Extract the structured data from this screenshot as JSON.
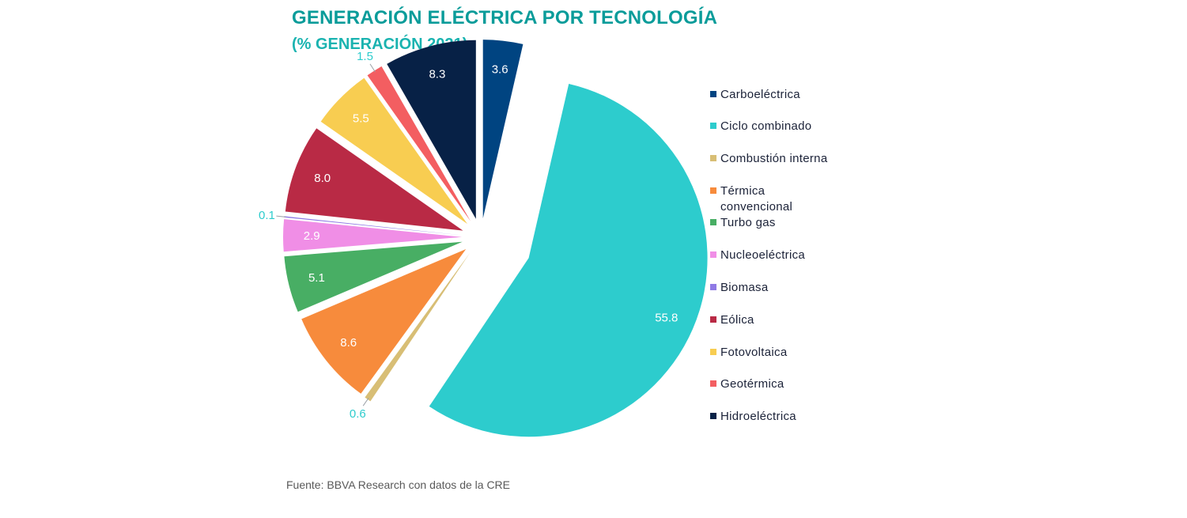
{
  "title": "GENERACIÓN ELÉCTRICA POR TECNOLOGÍA",
  "subtitle": "(% GENERACIÓN 2021)",
  "source": "Fuente: BBVA Research con datos de la CRE",
  "chart_data": {
    "type": "pie",
    "exploded": true,
    "legend_position": "right",
    "slices": [
      {
        "label": "Carboeléctrica",
        "value": 3.6,
        "value_label": "3.6",
        "color": "#004481"
      },
      {
        "label": "Ciclo combinado",
        "value": 55.8,
        "value_label": "55.8",
        "color": "#2dcccd"
      },
      {
        "label": "Combustión interna",
        "value": 0.6,
        "value_label": "0.6",
        "color": "#d8be75"
      },
      {
        "label": "Térmica convencional",
        "value": 8.6,
        "value_label": "8.6",
        "color": "#f78b3c"
      },
      {
        "label": "Turbo gas",
        "value": 5.1,
        "value_label": "5.1",
        "color": "#48ae64"
      },
      {
        "label": "Nucleoeléctrica",
        "value": 2.9,
        "value_label": "2.9",
        "color": "#f08ee6"
      },
      {
        "label": "Biomasa",
        "value": 0.1,
        "value_label": "0.1",
        "color": "#8f7ae5"
      },
      {
        "label": "Eólica",
        "value": 8.0,
        "value_label": "8.0",
        "color": "#b92a45"
      },
      {
        "label": "Fotovoltaica",
        "value": 5.5,
        "value_label": "5.5",
        "color": "#f8cd51"
      },
      {
        "label": "Geotérmica",
        "value": 1.5,
        "value_label": "1.5",
        "color": "#f35e61"
      },
      {
        "label": "Hidroeléctrica",
        "value": 8.3,
        "value_label": "8.3",
        "color": "#072146"
      }
    ]
  }
}
